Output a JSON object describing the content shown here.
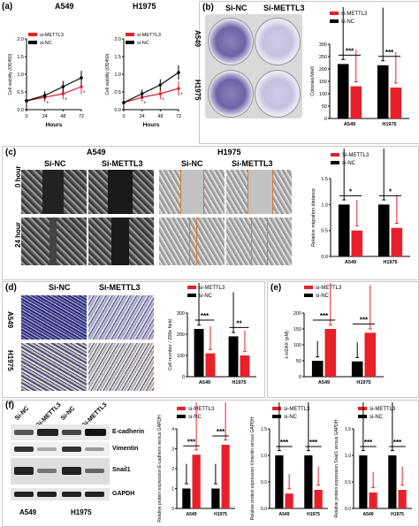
{
  "colors": {
    "si_mettl3": "#e8202a",
    "si_nc": "#000000"
  },
  "panels": {
    "a": "(a)",
    "b": "(b)",
    "c": "(c)",
    "d": "(d)",
    "e": "(e)",
    "f": "(f)"
  },
  "a": {
    "left_title": "A549",
    "right_title": "H1975",
    "legend1": "si-METTL3",
    "legend2": "si-NC",
    "ylabel": "Cell viability (OD450)",
    "xlabel": "Hours",
    "xticks": [
      "0",
      "24",
      "48",
      "72"
    ],
    "yticks": [
      "0.0",
      "0.5",
      "1.0",
      "1.5",
      "2.0"
    ],
    "star": "*"
  },
  "b": {
    "col1": "Si-NC",
    "col2": "Si-METTL3",
    "row1": "A549",
    "row2": "H1975",
    "legend1": "si-METTL3",
    "legend2": "si-NC",
    "ylabel": "Colonies/Well",
    "yticks": [
      "0",
      "50",
      "100",
      "150",
      "200",
      "250",
      "300"
    ],
    "xcats": [
      "A549",
      "H1975"
    ],
    "sig": "***"
  },
  "c": {
    "left_title": "A549",
    "right_title": "H1975",
    "col1": "Si-NC",
    "col2": "Si-METTL3",
    "col3": "Si-NC",
    "col4": "Si-METTL3",
    "row1": "0 hour",
    "row2": "24 hour",
    "legend1": "Si-METTL3",
    "legend2": "si-NC",
    "ylabel": "Relative migration distance",
    "yticks": [
      "0.0",
      "0.5",
      "1.0",
      "1.5"
    ],
    "xcats": [
      "A549",
      "H1975"
    ],
    "sig": "*"
  },
  "d": {
    "col1": "Si-NC",
    "col2": "Si-METTL3",
    "row1": "A549",
    "row2": "H1975",
    "legend1": "si-METTL3",
    "legend2": "si-NC",
    "ylabel": "Cell number / 200x field",
    "yticks": [
      "0",
      "100",
      "200",
      "300"
    ],
    "xcats": [
      "A549",
      "H1975"
    ],
    "sig1": "***",
    "sig2": "**"
  },
  "e": {
    "legend1": "si-METTL3",
    "legend2": "si-NC",
    "ylabel": "λ-H2AX (pM)",
    "yticks": [
      "0",
      "50",
      "100",
      "150",
      "200"
    ],
    "xcats": [
      "A549",
      "H1975"
    ],
    "sig": "***"
  },
  "f": {
    "lanes": [
      "Si-NC",
      "Si-METTL3",
      "Si-NC",
      "Si-METTL3"
    ],
    "bands": [
      "E-cadherin",
      "Vimentin",
      "Snail1",
      "GAPDH"
    ],
    "cells1": "A549",
    "cells2": "H1975",
    "legend1": "si-METTL3",
    "legend2": "si-NC",
    "ylabel1": "Relative protein expression E-cadherin versus GAPDH",
    "ylabel2": "Relative protein expression Vimentin versus GAPDH",
    "ylabel3": "Relative protein expression Snail1 versus GAPDH",
    "yticks1": [
      "0",
      "1",
      "2",
      "3",
      "4"
    ],
    "yticks2": [
      "0.0",
      "0.5",
      "1.0",
      "1.5"
    ],
    "yticks3": [
      "0.0",
      "0.5",
      "1.0",
      "1.5"
    ],
    "xcats": [
      "A549",
      "H1975"
    ],
    "sig": "***"
  },
  "chart_data": [
    {
      "id": "a-A549",
      "type": "line",
      "x": [
        0,
        24,
        48,
        72
      ],
      "xlabel": "Hours",
      "ylabel": "Cell viability (OD450)",
      "ylim": [
        0,
        2.0
      ],
      "series": [
        {
          "name": "si-METTL3",
          "values": [
            0.25,
            0.35,
            0.45,
            0.65
          ]
        },
        {
          "name": "si-NC",
          "values": [
            0.25,
            0.4,
            0.65,
            0.9
          ]
        }
      ]
    },
    {
      "id": "a-H1975",
      "type": "line",
      "x": [
        0,
        24,
        48,
        72
      ],
      "xlabel": "Hours",
      "ylabel": "Cell viability (OD450)",
      "ylim": [
        0,
        2.0
      ],
      "series": [
        {
          "name": "si-METTL3",
          "values": [
            0.2,
            0.35,
            0.45,
            0.6
          ]
        },
        {
          "name": "si-NC",
          "values": [
            0.2,
            0.45,
            0.7,
            1.05
          ]
        }
      ]
    },
    {
      "id": "b",
      "type": "bar",
      "categories": [
        "A549",
        "H1975"
      ],
      "ylabel": "Colonies/Well",
      "ylim": [
        0,
        300
      ],
      "series": [
        {
          "name": "si-NC",
          "values": [
            220,
            215
          ]
        },
        {
          "name": "si-METTL3",
          "values": [
            130,
            125
          ]
        }
      ]
    },
    {
      "id": "c",
      "type": "bar",
      "categories": [
        "A549",
        "H1975"
      ],
      "ylabel": "Relative migration distance",
      "ylim": [
        0,
        1.5
      ],
      "series": [
        {
          "name": "si-NC",
          "values": [
            1.0,
            1.0
          ]
        },
        {
          "name": "Si-METTL3",
          "values": [
            0.5,
            0.55
          ]
        }
      ]
    },
    {
      "id": "d",
      "type": "bar",
      "categories": [
        "A549",
        "H1975"
      ],
      "ylabel": "Cell number / 200x field",
      "ylim": [
        0,
        300
      ],
      "series": [
        {
          "name": "si-NC",
          "values": [
            225,
            190
          ]
        },
        {
          "name": "si-METTL3",
          "values": [
            110,
            100
          ]
        }
      ]
    },
    {
      "id": "e",
      "type": "bar",
      "categories": [
        "A549",
        "H1975"
      ],
      "ylabel": "λ-H2AX (pM)",
      "ylim": [
        0,
        200
      ],
      "series": [
        {
          "name": "si-NC",
          "values": [
            50,
            48
          ]
        },
        {
          "name": "si-METTL3",
          "values": [
            150,
            138
          ]
        }
      ]
    },
    {
      "id": "f1",
      "type": "bar",
      "categories": [
        "A549",
        "H1975"
      ],
      "ylabel": "Relative protein expression E-cadherin versus GAPDH",
      "ylim": [
        0,
        4
      ],
      "series": [
        {
          "name": "si-NC",
          "values": [
            1.0,
            1.0
          ]
        },
        {
          "name": "si-METTL3",
          "values": [
            2.7,
            3.2
          ]
        }
      ]
    },
    {
      "id": "f2",
      "type": "bar",
      "categories": [
        "A549",
        "H1975"
      ],
      "ylabel": "Relative protein expression Vimentin versus GAPDH",
      "ylim": [
        0,
        1.5
      ],
      "series": [
        {
          "name": "si-NC",
          "values": [
            1.0,
            1.0
          ]
        },
        {
          "name": "si-METTL3",
          "values": [
            0.28,
            0.35
          ]
        }
      ]
    },
    {
      "id": "f3",
      "type": "bar",
      "categories": [
        "A549",
        "H1975"
      ],
      "ylabel": "Relative protein expression Snail1 versus GAPDH",
      "ylim": [
        0,
        1.5
      ],
      "series": [
        {
          "name": "si-NC",
          "values": [
            1.0,
            1.0
          ]
        },
        {
          "name": "si-METTL3",
          "values": [
            0.3,
            0.35
          ]
        }
      ]
    }
  ]
}
